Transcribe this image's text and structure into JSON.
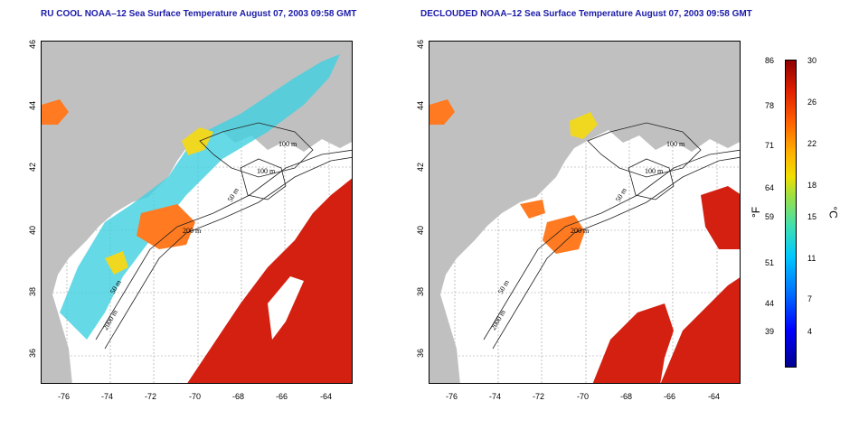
{
  "left_panel": {
    "title": "RU COOL NOAA–12 Sea Surface Temperature August 07, 2003 09:58 GMT",
    "y_ticks": [
      "46",
      "44",
      "42",
      "40",
      "38",
      "36"
    ],
    "x_ticks": [
      "-76",
      "-74",
      "-72",
      "-70",
      "-68",
      "-66",
      "-64"
    ],
    "contour_labels": [
      "100 m",
      "100 m",
      "50 m",
      "200 m",
      "50 m",
      "2000 m"
    ]
  },
  "right_panel": {
    "title": "DECLOUDED NOAA–12 Sea Surface Temperature August 07, 2003 09:58 GMT",
    "y_ticks": [
      "46",
      "44",
      "42",
      "40",
      "38",
      "36"
    ],
    "x_ticks": [
      "-76",
      "-74",
      "-72",
      "-70",
      "-68",
      "-66",
      "-64"
    ],
    "contour_labels": [
      "100 m",
      "100 m",
      "50 m",
      "200 m",
      "50 m",
      "2000 m"
    ]
  },
  "colorbar": {
    "fahrenheit_unit": "°F",
    "celsius_unit": "°C",
    "fahrenheit_ticks": [
      "86",
      "78",
      "71",
      "64",
      "59",
      "51",
      "44",
      "39"
    ],
    "celsius_ticks": [
      "30",
      "26",
      "22",
      "18",
      "15",
      "11",
      "7",
      "4"
    ]
  },
  "colors": {
    "land": "#c0c0c0",
    "warm": "#d42010",
    "hot": "#b80000",
    "orange": "#ff7a20",
    "yellow": "#f0d820",
    "cyan": "#40d0e0",
    "title": "#1a1aa8"
  }
}
